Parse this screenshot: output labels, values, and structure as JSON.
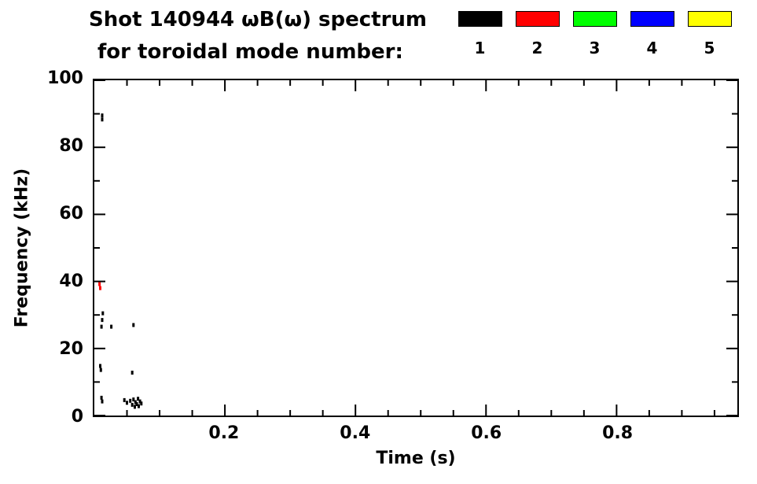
{
  "header": {
    "title": "Shot 140944 ωB(ω) spectrum",
    "subtitle": "for toroidal mode number:"
  },
  "legend": {
    "entries": [
      {
        "label": "1",
        "color": "#000000"
      },
      {
        "label": "2",
        "color": "#ff0000"
      },
      {
        "label": "3",
        "color": "#00ff00"
      },
      {
        "label": "4",
        "color": "#0000ff"
      },
      {
        "label": "5",
        "color": "#ffff00"
      }
    ]
  },
  "chart_data": {
    "type": "scatter",
    "title": "Shot 140944 ωB(ω) spectrum for toroidal mode number: 1 2 3 4 5",
    "xlabel": "Time (s)",
    "ylabel": "Frequency (kHz)",
    "xlim": [
      0,
      0.985
    ],
    "ylim": [
      0,
      100
    ],
    "xticks": [
      0.2,
      0.4,
      0.6,
      0.8
    ],
    "xminor_step": 0.05,
    "yticks": [
      0,
      20,
      40,
      60,
      80,
      100
    ],
    "yminor_step": 10,
    "grid": false,
    "legend_position": "above-plot-right",
    "series": [
      {
        "name": "toroidal mode n=1",
        "color": "#000000",
        "points": [
          [
            0.012,
            89.5
          ],
          [
            0.012,
            88.3
          ],
          [
            0.013,
            30.5
          ],
          [
            0.012,
            28.5
          ],
          [
            0.011,
            26.5
          ],
          [
            0.026,
            26.5
          ],
          [
            0.06,
            27.0
          ],
          [
            0.009,
            14.8
          ],
          [
            0.01,
            13.6
          ],
          [
            0.011,
            5.3
          ],
          [
            0.012,
            4.2
          ],
          [
            0.058,
            12.8
          ],
          [
            0.046,
            4.6
          ],
          [
            0.05,
            3.8
          ],
          [
            0.055,
            4.4
          ],
          [
            0.058,
            3.2
          ],
          [
            0.06,
            4.8
          ],
          [
            0.062,
            2.6
          ],
          [
            0.063,
            4.0
          ],
          [
            0.065,
            3.4
          ],
          [
            0.067,
            5.0
          ],
          [
            0.068,
            2.8
          ],
          [
            0.07,
            4.2
          ],
          [
            0.072,
            3.6
          ]
        ]
      },
      {
        "name": "toroidal mode n=2",
        "color": "#ff0000",
        "points": [
          [
            0.008,
            39.2
          ],
          [
            0.009,
            38.0
          ]
        ]
      },
      {
        "name": "toroidal mode n=3",
        "color": "#00ff00",
        "points": []
      },
      {
        "name": "toroidal mode n=4",
        "color": "#0000ff",
        "points": []
      },
      {
        "name": "toroidal mode n=5",
        "color": "#ffff00",
        "points": []
      }
    ]
  }
}
